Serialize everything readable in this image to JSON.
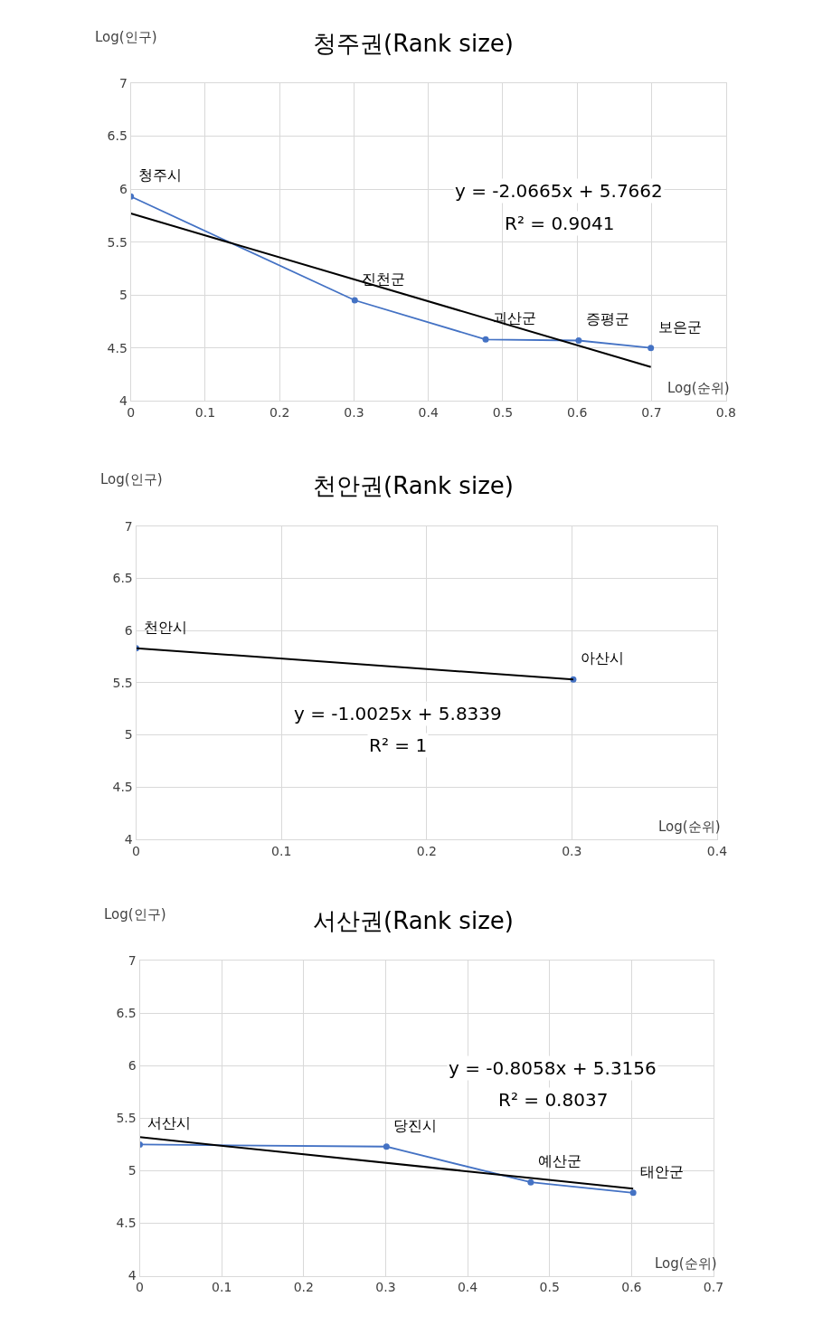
{
  "chart_data": [
    {
      "type": "line",
      "title": "청주권(Rank size)",
      "xlabel": "Log(순위)",
      "ylabel": "Log(인구)",
      "xlim": [
        0,
        0.8
      ],
      "xticks": [
        0,
        0.1,
        0.2,
        0.3,
        0.4,
        0.5,
        0.6,
        0.7,
        0.8
      ],
      "ylim": [
        4,
        7
      ],
      "yticks": [
        4,
        4.5,
        5,
        5.5,
        6,
        6.5,
        7
      ],
      "grid": true,
      "series": [
        {
          "color": "#4472c4",
          "marker": "circle",
          "x": [
            0,
            0.301,
            0.477,
            0.602,
            0.699
          ],
          "values": [
            5.93,
            4.95,
            4.58,
            4.57,
            4.5
          ]
        },
        {
          "color": "#000000",
          "marker": "none",
          "x": [
            0,
            0.699
          ],
          "values": [
            5.77,
            4.32
          ]
        }
      ],
      "annotations": [
        {
          "text": "청주시",
          "x": 0,
          "y": 5.93
        },
        {
          "text": "진천군",
          "x": 0.301,
          "y": 4.95
        },
        {
          "text": "괴산군",
          "x": 0.477,
          "y": 4.58
        },
        {
          "text": "증평군",
          "x": 0.602,
          "y": 4.57
        },
        {
          "text": "보은군",
          "x": 0.699,
          "y": 4.5
        },
        "y = -2.0665x + 5.7662",
        "R² = 0.9041"
      ]
    },
    {
      "type": "scatter",
      "title": "천안권(Rank size)",
      "xlabel": "Log(순위)",
      "ylabel": "Log(인구)",
      "xlim": [
        0,
        0.4
      ],
      "xticks": [
        0,
        0.1,
        0.2,
        0.3,
        0.4
      ],
      "ylim": [
        4,
        7
      ],
      "yticks": [
        4,
        4.5,
        5,
        5.5,
        6,
        6.5,
        7
      ],
      "grid": true,
      "series": [
        {
          "color": "#4472c4",
          "marker": "circle",
          "x": [
            0,
            0.301
          ],
          "values": [
            5.83,
            5.53
          ]
        },
        {
          "type": "line",
          "color": "#000000",
          "marker": "none",
          "x": [
            0,
            0.301
          ],
          "values": [
            5.83,
            5.53
          ]
        }
      ],
      "annotations": [
        {
          "text": "천안시",
          "x": 0,
          "y": 5.83
        },
        {
          "text": "아산시",
          "x": 0.301,
          "y": 5.53
        },
        "y = -1.0025x + 5.8339",
        "R² = 1"
      ]
    },
    {
      "type": "line",
      "title": "서산권(Rank size)",
      "xlabel": "Log(순위)",
      "ylabel": "Log(인구)",
      "xlim": [
        0,
        0.7
      ],
      "xticks": [
        0,
        0.1,
        0.2,
        0.3,
        0.4,
        0.5,
        0.6,
        0.7
      ],
      "ylim": [
        4,
        7
      ],
      "yticks": [
        4,
        4.5,
        5,
        5.5,
        6,
        6.5,
        7
      ],
      "grid": true,
      "series": [
        {
          "color": "#4472c4",
          "marker": "circle",
          "x": [
            0,
            0.301,
            0.477,
            0.602
          ],
          "values": [
            5.25,
            5.23,
            4.89,
            4.79
          ]
        },
        {
          "color": "#000000",
          "marker": "none",
          "x": [
            0,
            0.602
          ],
          "values": [
            5.32,
            4.83
          ]
        }
      ],
      "annotations": [
        {
          "text": "서산시",
          "x": 0,
          "y": 5.25
        },
        {
          "text": "당진시",
          "x": 0.301,
          "y": 5.23
        },
        {
          "text": "예산군",
          "x": 0.477,
          "y": 4.89
        },
        {
          "text": "태안군",
          "x": 0.602,
          "y": 4.79
        },
        "y = -0.8058x + 5.3156",
        "R² = 0.8037"
      ]
    }
  ]
}
